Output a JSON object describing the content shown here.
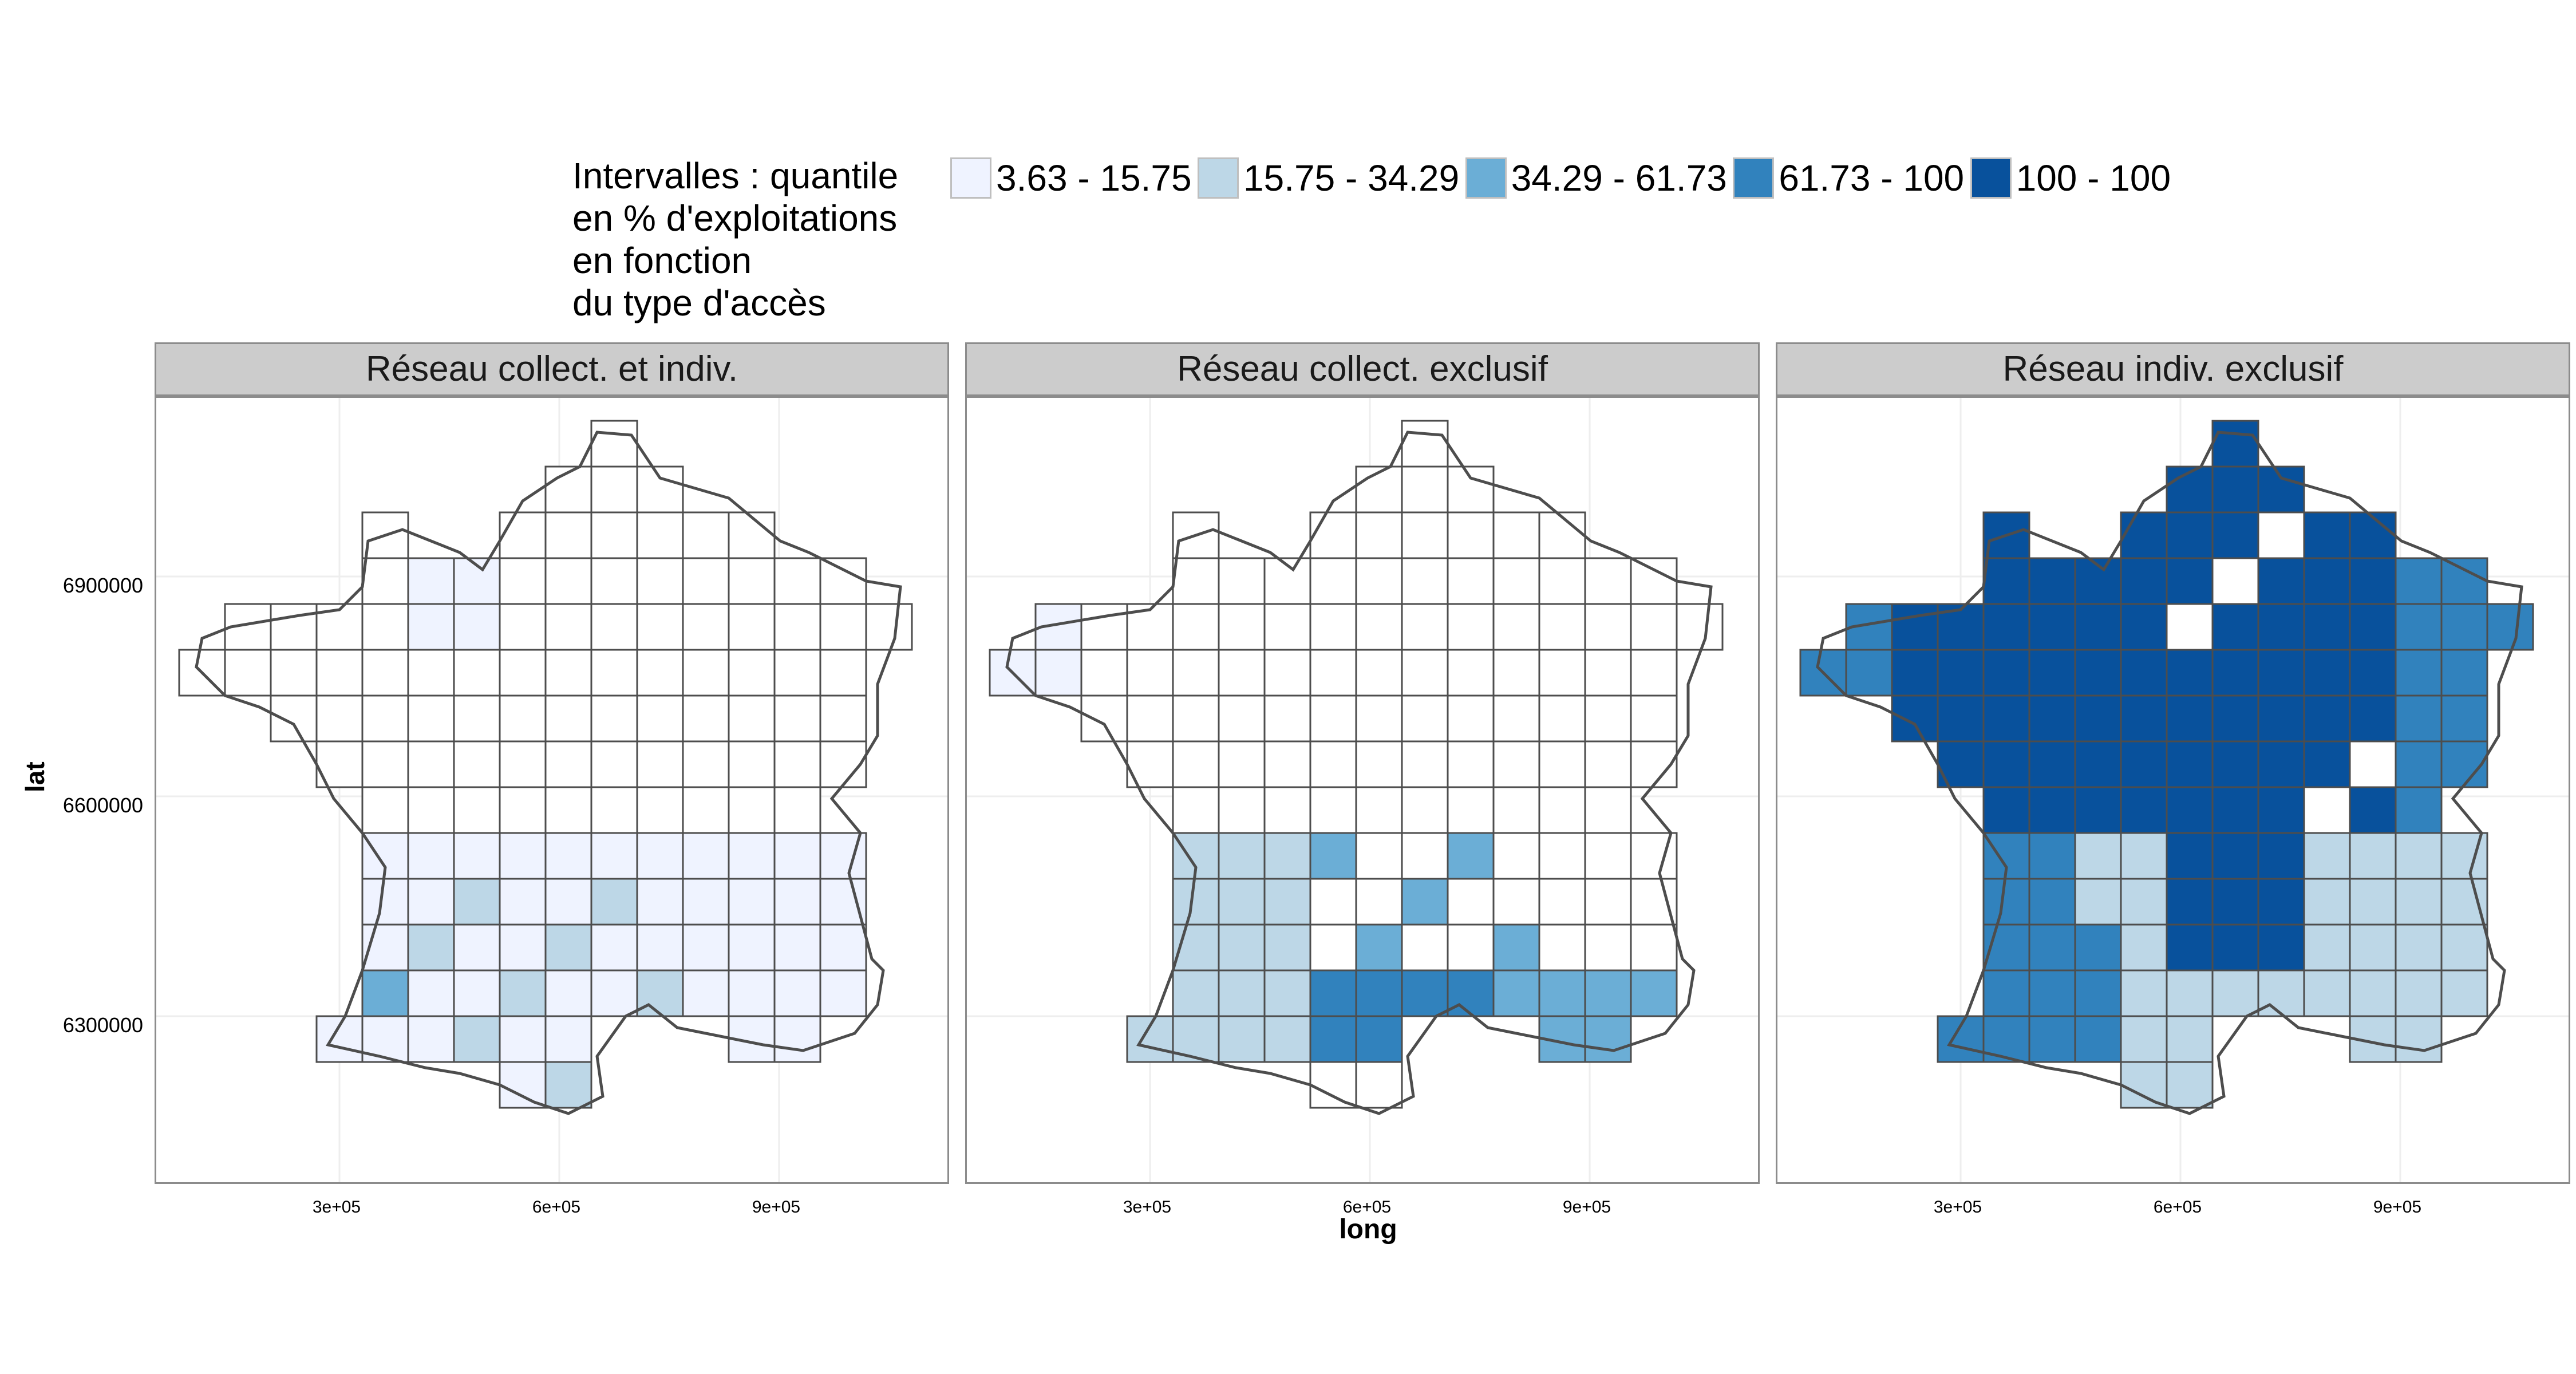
{
  "legend": {
    "title_lines": [
      "Intervalles :  quantile",
      "en % d'exploitations",
      "en fonction",
      "du type d'accès"
    ],
    "items": [
      {
        "label": "3.63 - 15.75",
        "color": "#eff3ff"
      },
      {
        "label": "15.75 - 34.29",
        "color": "#bdd7e7"
      },
      {
        "label": "34.29 - 61.73",
        "color": "#6baed6"
      },
      {
        "label": "61.73 - 100",
        "color": "#3182bd"
      },
      {
        "label": "100 - 100",
        "color": "#08519c"
      }
    ]
  },
  "panels": [
    {
      "title": "Réseau collect. et indiv."
    },
    {
      "title": "Réseau collect. exclusif"
    },
    {
      "title": "Réseau indiv. exclusif"
    }
  ],
  "axes": {
    "xlabel": "long",
    "ylabel": "lat",
    "y_ticks": [
      "6900000",
      "6600000",
      "6300000"
    ],
    "x_ticks": [
      "3e+05",
      "6e+05",
      "9e+05"
    ]
  },
  "chart_data": {
    "type": "choropleth",
    "region": "France (départements)",
    "x_ticks": [
      300000,
      600000,
      900000
    ],
    "y_ticks": [
      6300000,
      6600000,
      6900000
    ],
    "classes": [
      "3.63 - 15.75",
      "15.75 - 34.29",
      "34.29 - 61.73",
      "61.73 - 100",
      "100 - 100"
    ],
    "grid": true,
    "legend_position": "top"
  }
}
